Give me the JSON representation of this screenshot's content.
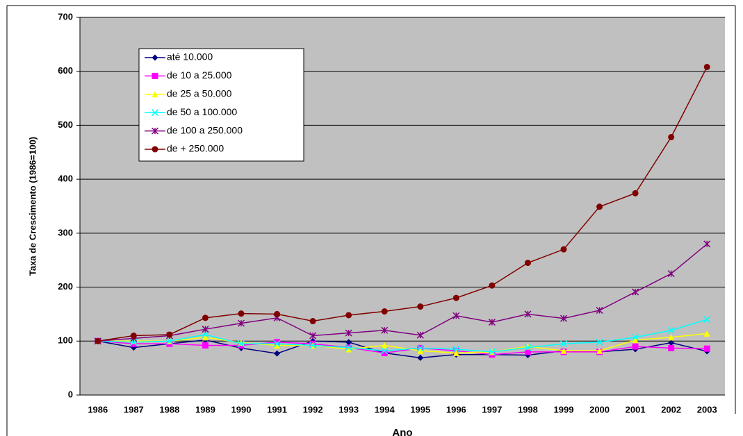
{
  "chart_data": {
    "type": "line",
    "y_label": "Taxa de Crescimento (1986=100)",
    "x_label": "Ano",
    "categories": [
      "1986",
      "1987",
      "1988",
      "1989",
      "1990",
      "1991",
      "1992",
      "1993",
      "1994",
      "1995",
      "1996",
      "1997",
      "1998",
      "1999",
      "2000",
      "2001",
      "2002",
      "2003"
    ],
    "ylim": [
      0,
      700
    ],
    "yticks": [
      0,
      100,
      200,
      300,
      400,
      500,
      600,
      700
    ],
    "grid": true,
    "legend": "upper-left",
    "series": [
      {
        "name": "até 10.000",
        "color": "#000080",
        "marker": "diamond",
        "values": [
          100,
          88,
          95,
          102,
          87,
          77,
          100,
          98,
          78,
          69,
          75,
          75,
          74,
          82,
          80,
          85,
          97,
          81
        ]
      },
      {
        "name": "de 10 a 25.000",
        "color": "#ff00ff",
        "marker": "square",
        "values": [
          100,
          95,
          95,
          92,
          92,
          98,
          95,
          88,
          78,
          87,
          82,
          75,
          80,
          80,
          80,
          90,
          87,
          86
        ]
      },
      {
        "name": "de 25 a 50.000",
        "color": "#ffff00",
        "marker": "triangle",
        "values": [
          100,
          100,
          100,
          107,
          97,
          92,
          92,
          85,
          92,
          82,
          78,
          80,
          90,
          82,
          82,
          102,
          107,
          114
        ]
      },
      {
        "name": "de 50 a 100.000",
        "color": "#00ffff",
        "marker": "x",
        "values": [
          100,
          98,
          100,
          112,
          95,
          95,
          92,
          88,
          82,
          87,
          85,
          80,
          88,
          95,
          98,
          107,
          120,
          140
        ]
      },
      {
        "name": "de 100 a 250.000",
        "color": "#800080",
        "marker": "star",
        "values": [
          100,
          105,
          110,
          122,
          133,
          143,
          110,
          115,
          120,
          111,
          147,
          135,
          150,
          142,
          157,
          191,
          225,
          280
        ]
      },
      {
        "name": "de + 250.000",
        "color": "#800000",
        "marker": "circle",
        "values": [
          100,
          110,
          112,
          143,
          151,
          150,
          137,
          148,
          155,
          164,
          180,
          203,
          245,
          270,
          349,
          374,
          478,
          608
        ]
      }
    ]
  }
}
